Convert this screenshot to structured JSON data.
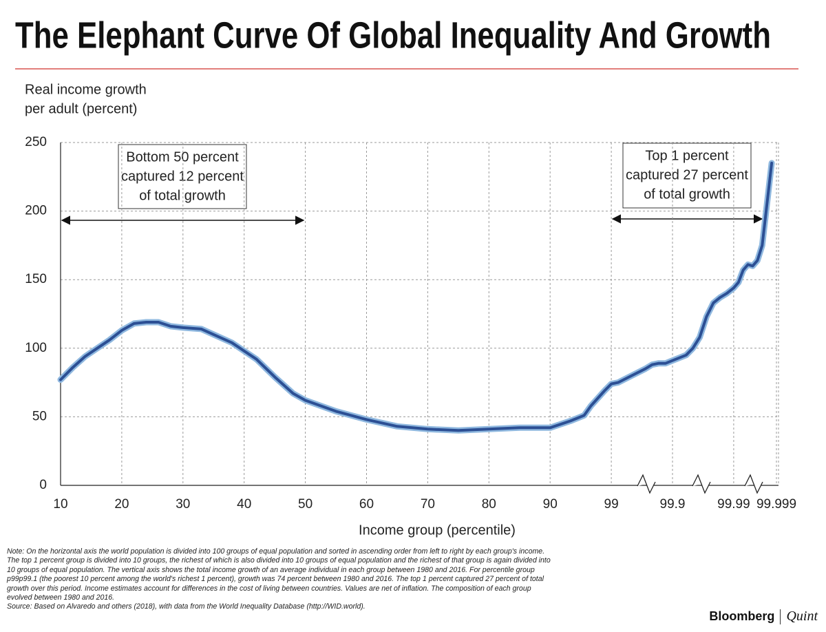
{
  "chart_data": {
    "type": "line",
    "title": "The Elephant Curve Of Global Inequality And Growth",
    "ylabel": [
      "Real income growth",
      "per adult (percent)"
    ],
    "xlabel": "Income group (percentile)",
    "annotations": [
      {
        "lines": [
          "Bottom 50 percent",
          "captured 12 percent",
          "of total growth"
        ]
      },
      {
        "lines": [
          "Top 1 percent",
          "captured 27 percent",
          "of total growth"
        ]
      }
    ],
    "xticks": [
      10,
      20,
      30,
      40,
      50,
      60,
      70,
      80,
      90,
      99,
      99.9,
      99.99,
      99.999
    ],
    "xlim": [
      10,
      99.999
    ],
    "ylim": [
      0,
      250
    ],
    "yticks": [
      0,
      50,
      100,
      150,
      200,
      250
    ],
    "grid": true,
    "series": [
      {
        "color": "#2c4f94",
        "x": [
          10,
          12,
          14,
          16,
          18,
          20,
          22,
          24,
          26,
          28,
          30,
          33,
          35,
          38,
          40,
          42,
          45,
          48,
          50,
          55,
          60,
          65,
          70,
          75,
          80,
          85,
          90,
          93,
          95,
          96,
          98,
          99,
          99.1,
          99.3,
          99.5,
          99.6,
          99.7,
          99.8,
          99.9,
          99.92,
          99.93,
          99.94,
          99.95,
          99.96,
          99.97,
          99.98,
          99.99,
          99.991,
          99.992,
          99.993,
          99.994,
          99.995,
          99.996,
          99.997,
          99.998
        ],
        "values": [
          77,
          86,
          94,
          100,
          106,
          113,
          118,
          119,
          119,
          116,
          115,
          114,
          110,
          104,
          98,
          92,
          79,
          67,
          62,
          54,
          48,
          43,
          41,
          40,
          41,
          42,
          42,
          47,
          51,
          58,
          69,
          74,
          75,
          80,
          85,
          88,
          89,
          89,
          91,
          95,
          100,
          108,
          123,
          133,
          137,
          140,
          144,
          148,
          157,
          161,
          160,
          164,
          175,
          205,
          235
        ]
      }
    ],
    "note": "Note: On the horizontal axis the world population is divided into 100 groups of equal population and sorted in ascending order from left to right by each group's income. The top 1 percent group is divided into 10 groups, the richest of which is also divided into 10 groups of equal population and the richest of that group is again divided into 10 groups of equal population. The vertical axis shows the total income growth of an average individual in each group between 1980 and 2016. For percentile group p99p99.1 (the poorest 10 percent among the world's richest 1 percent), growth was 74 percent between 1980 and 2016. The top 1 percent captured 27 percent of total growth over this period. Income estimates account for differences in the cost of living between countries. Values are net of inflation. The composition of each group evolved between 1980 and 2016.",
    "source": "Source: Based on Alvaredo and others (2018), with data from the World Inequality Database (http://WID.world).",
    "logo": [
      "Bloomberg",
      "Quint"
    ]
  }
}
